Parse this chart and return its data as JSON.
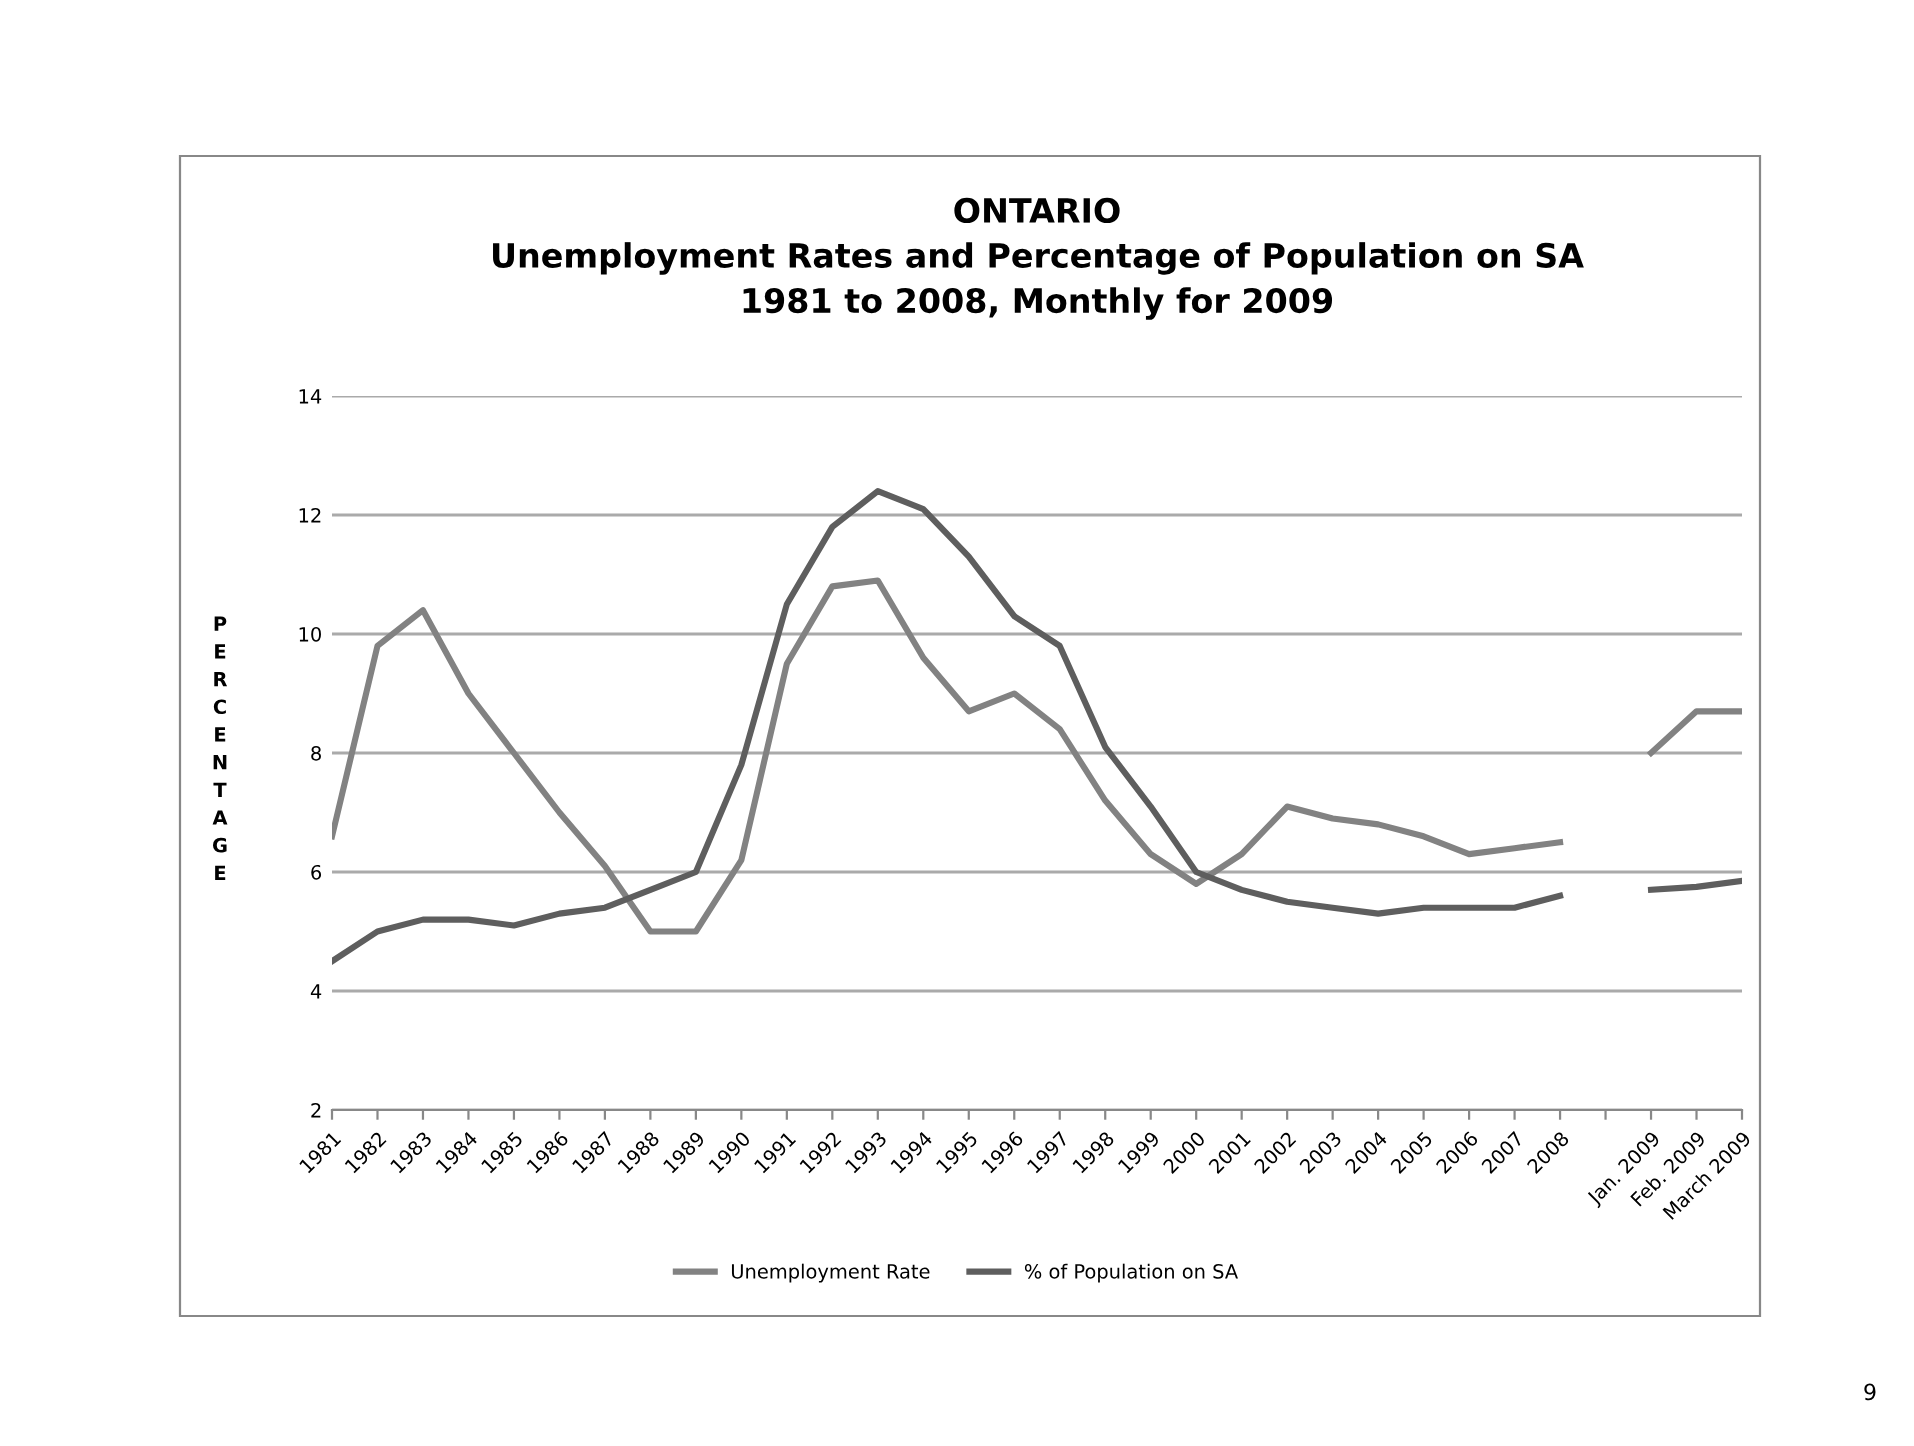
{
  "chart_data": {
    "type": "line",
    "title": "ONTARIO\nUnemployment Rates and Percentage of Population on SA\n1981 to 2008, Monthly for 2009",
    "ylabel": "PERCENTAGE",
    "categories": [
      "1981",
      "1982",
      "1983",
      "1984",
      "1985",
      "1986",
      "1987",
      "1988",
      "1989",
      "1990",
      "1991",
      "1992",
      "1993",
      "1994",
      "1995",
      "1996",
      "1997",
      "1998",
      "1999",
      "2000",
      "2001",
      "2002",
      "2003",
      "2004",
      "2005",
      "2006",
      "2007",
      "2008",
      null,
      "Jan. 2009",
      "Feb. 2009",
      "March 2009"
    ],
    "series": [
      {
        "name": "Unemployment Rate",
        "color": "#828282",
        "values": [
          6.6,
          9.8,
          10.4,
          9.0,
          8.0,
          7.0,
          6.1,
          5.0,
          5.0,
          6.2,
          9.5,
          10.8,
          10.9,
          9.6,
          8.7,
          9.0,
          8.4,
          7.2,
          6.3,
          5.8,
          6.3,
          7.1,
          6.9,
          6.8,
          6.6,
          6.3,
          6.4,
          6.5,
          null,
          8.0,
          8.7,
          8.7
        ]
      },
      {
        "name": "% of Population on SA",
        "color": "#5e5e5e",
        "values": [
          4.5,
          5.0,
          5.2,
          5.2,
          5.1,
          5.3,
          5.4,
          5.7,
          6.0,
          7.8,
          10.5,
          11.8,
          12.4,
          12.1,
          11.3,
          10.3,
          9.8,
          8.1,
          7.1,
          6.0,
          5.7,
          5.5,
          5.4,
          5.3,
          5.4,
          5.4,
          5.4,
          5.6,
          null,
          5.7,
          5.75,
          5.85
        ]
      }
    ],
    "ylim": [
      2,
      14
    ],
    "yticks": [
      2,
      4,
      6,
      8,
      10,
      12,
      14
    ],
    "grid": "y",
    "legend": "bottom",
    "marker": "none",
    "line_style": "solid",
    "annotations": [
      "9"
    ]
  }
}
